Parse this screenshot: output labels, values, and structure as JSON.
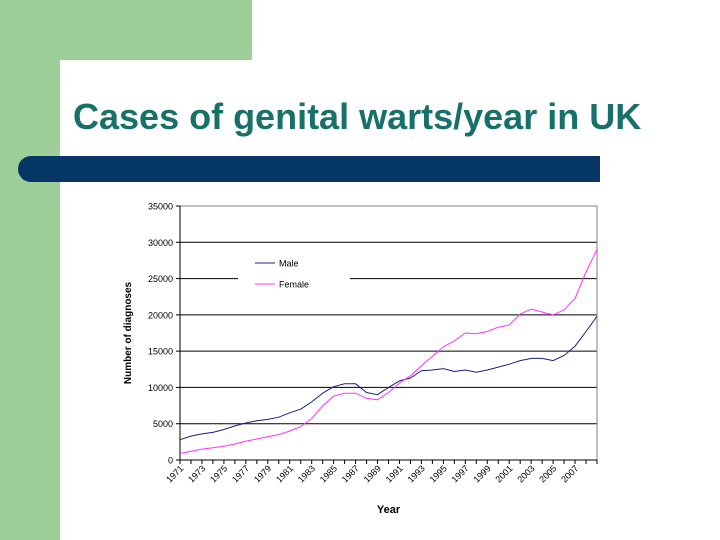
{
  "slide": {
    "title": "Cases of genital warts/year in UK"
  },
  "colors": {
    "title": "#17706a",
    "band": "#053666",
    "sidebar": "#9fcf98",
    "male": "#1a237e",
    "female": "#ff33ff"
  },
  "chart_data": {
    "type": "line",
    "title": "",
    "xlabel": "Year",
    "ylabel": "Number of diagnoses",
    "ylim": [
      0,
      35000
    ],
    "yticks": [
      0,
      5000,
      10000,
      15000,
      20000,
      25000,
      30000,
      35000
    ],
    "xticks": [
      "1971",
      "1973",
      "1975",
      "1977",
      "1979",
      "1981",
      "1983",
      "1985",
      "1987",
      "1989",
      "1991",
      "1993",
      "1995",
      "1997",
      "1999",
      "2001",
      "2003",
      "2005",
      "2007"
    ],
    "x": [
      1971,
      1972,
      1973,
      1974,
      1975,
      1976,
      1977,
      1978,
      1979,
      1980,
      1981,
      1982,
      1983,
      1984,
      1985,
      1986,
      1987,
      1988,
      1989,
      1990,
      1991,
      1992,
      1993,
      1994,
      1995,
      1996,
      1997,
      1998,
      1999,
      2000,
      2001,
      2002,
      2003,
      2004,
      2005,
      2006,
      2007,
      2008,
      2009
    ],
    "xlim": [
      1971,
      2009
    ],
    "grid": "horizontal",
    "legend": "upper-left",
    "series": [
      {
        "name": "Male",
        "values": [
          2800,
          3300,
          3600,
          3800,
          4200,
          4700,
          5100,
          5400,
          5600,
          5900,
          6500,
          7000,
          8000,
          9200,
          10100,
          10500,
          10500,
          9300,
          9000,
          10000,
          10900,
          11300,
          12300,
          12400,
          12600,
          12200,
          12400,
          12100,
          12400,
          12800,
          13200,
          13700,
          14000,
          14000,
          13700,
          14400,
          15700,
          17700,
          19800
        ]
      },
      {
        "name": "Female",
        "values": [
          900,
          1200,
          1500,
          1700,
          1900,
          2200,
          2600,
          2900,
          3200,
          3500,
          4000,
          4600,
          5700,
          7500,
          8800,
          9200,
          9200,
          8500,
          8300,
          9300,
          10600,
          11600,
          13000,
          14300,
          15600,
          16400,
          17500,
          17400,
          17700,
          18300,
          18600,
          20100,
          20800,
          20400,
          20000,
          20700,
          22300,
          25900,
          29000
        ]
      }
    ]
  }
}
